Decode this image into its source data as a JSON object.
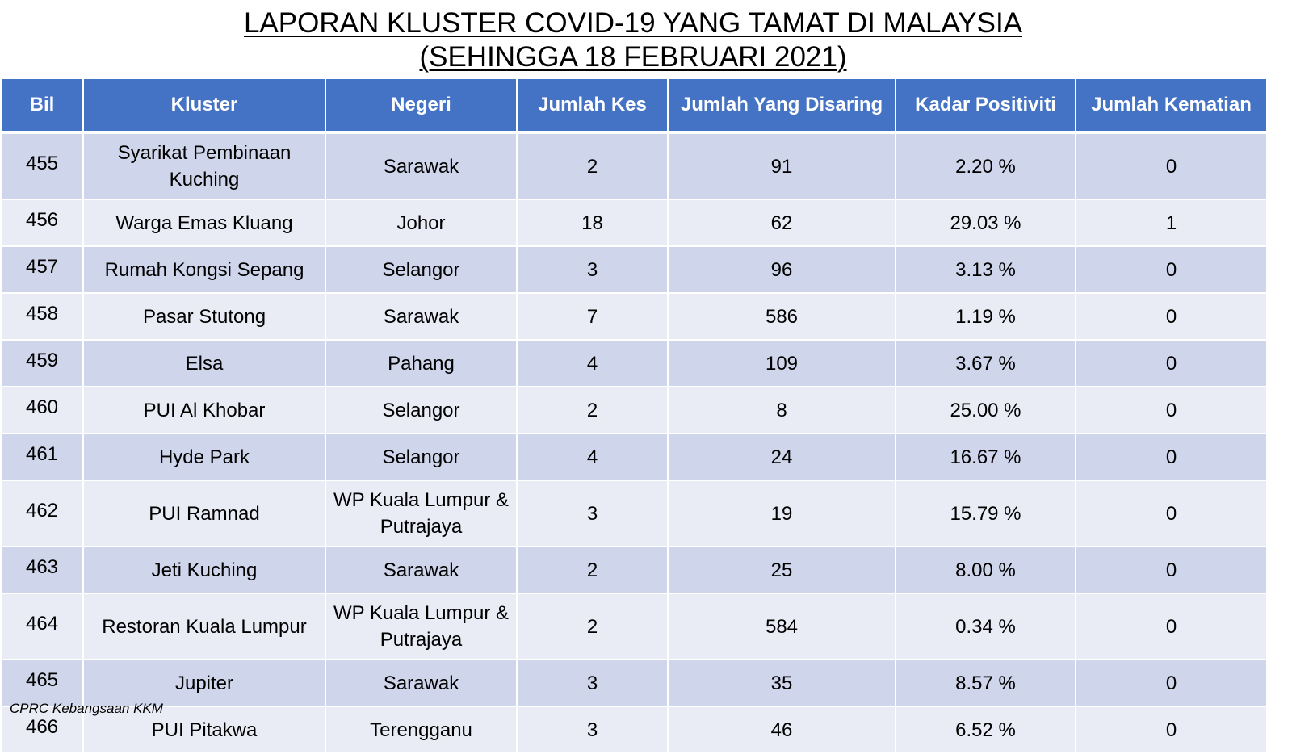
{
  "title_line1": "LAPORAN KLUSTER COVID-19 YANG TAMAT DI MALAYSIA",
  "title_line2": "(SEHINGGA 18 FEBRUARI 2021)",
  "headers": [
    "Bil",
    "Kluster",
    "Negeri",
    "Jumlah Kes",
    "Jumlah Yang Disaring",
    "Kadar Positiviti",
    "Jumlah Kematian"
  ],
  "rows": [
    {
      "bil": "455",
      "kluster": "Syarikat Pembinaan Kuching",
      "negeri": "Sarawak",
      "kes": "2",
      "disaring": "91",
      "positiviti": "2.20 %",
      "kematian": "0"
    },
    {
      "bil": "456",
      "kluster": "Warga Emas Kluang",
      "negeri": "Johor",
      "kes": "18",
      "disaring": "62",
      "positiviti": "29.03 %",
      "kematian": "1"
    },
    {
      "bil": "457",
      "kluster": "Rumah Kongsi Sepang",
      "negeri": "Selangor",
      "kes": "3",
      "disaring": "96",
      "positiviti": "3.13 %",
      "kematian": "0"
    },
    {
      "bil": "458",
      "kluster": "Pasar Stutong",
      "negeri": "Sarawak",
      "kes": "7",
      "disaring": "586",
      "positiviti": "1.19 %",
      "kematian": "0"
    },
    {
      "bil": "459",
      "kluster": "Elsa",
      "negeri": "Pahang",
      "kes": "4",
      "disaring": "109",
      "positiviti": "3.67 %",
      "kematian": "0"
    },
    {
      "bil": "460",
      "kluster": "PUI Al Khobar",
      "negeri": "Selangor",
      "kes": "2",
      "disaring": "8",
      "positiviti": "25.00 %",
      "kematian": "0"
    },
    {
      "bil": "461",
      "kluster": "Hyde Park",
      "negeri": "Selangor",
      "kes": "4",
      "disaring": "24",
      "positiviti": "16.67 %",
      "kematian": "0"
    },
    {
      "bil": "462",
      "kluster": "PUI Ramnad",
      "negeri": "WP Kuala Lumpur & Putrajaya",
      "kes": "3",
      "disaring": "19",
      "positiviti": "15.79 %",
      "kematian": "0"
    },
    {
      "bil": "463",
      "kluster": "Jeti Kuching",
      "negeri": "Sarawak",
      "kes": "2",
      "disaring": "25",
      "positiviti": "8.00 %",
      "kematian": "0"
    },
    {
      "bil": "464",
      "kluster": "Restoran Kuala Lumpur",
      "negeri": "WP Kuala Lumpur & Putrajaya",
      "kes": "2",
      "disaring": "584",
      "positiviti": "0.34 %",
      "kematian": "0"
    },
    {
      "bil": "465",
      "kluster": "Jupiter",
      "negeri": "Sarawak",
      "kes": "3",
      "disaring": "35",
      "positiviti": "8.57 %",
      "kematian": "0"
    },
    {
      "bil": "466",
      "kluster": "PUI Pitakwa",
      "negeri": "Terengganu",
      "kes": "3",
      "disaring": "46",
      "positiviti": "6.52 %",
      "kematian": "0"
    }
  ],
  "footer": "CPRC Kebangsaan KKM"
}
